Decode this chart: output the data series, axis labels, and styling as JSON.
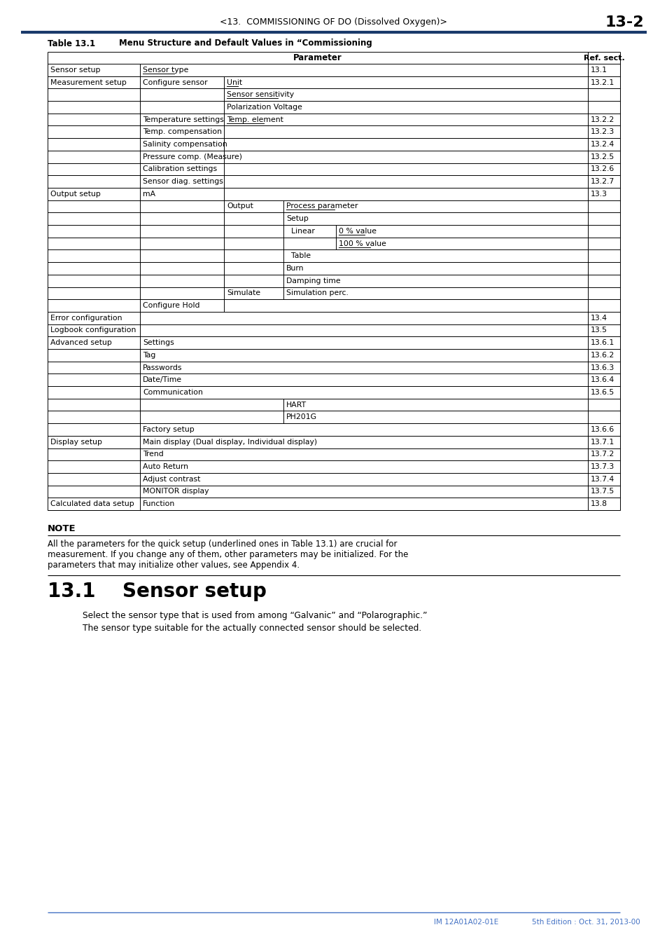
{
  "page_title": "<13.  COMMISSIONING OF DO (Dissolved Oxygen)>",
  "page_number": "13-2",
  "header_line_color": "#1a3a6b",
  "table_caption": "Table 13.1",
  "table_title": "Menu Structure and Default Values in “Commissioning",
  "footer_text": "IM 12A01A02-01E",
  "footer_text2": "5th Edition : Oct. 31, 2013-00",
  "footer_line_color": "#4472c4",
  "note_title": "NOTE",
  "note_body": "All the parameters for the quick setup (underlined ones in Table 13.1) are crucial for\nmeasurement. If you change any of them, other parameters may be initialized. For the\nparameters that may initialize other values, see Appendix 4.",
  "section_title_num": "13.1",
  "section_title_text": "Sensor setup",
  "section_body1": "Select the sensor type that is used from among “Galvanic” and “Polarographic.”",
  "section_body2": "The sensor type suitable for the actually connected sensor should be selected.",
  "bg_color": "white",
  "text_color": "black",
  "line_color": "black"
}
